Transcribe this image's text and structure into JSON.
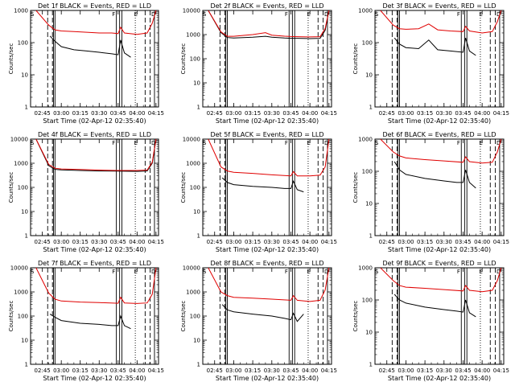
{
  "figure": {
    "title_prefix": "Det",
    "title_suffix": "BLACK = Events, RED = LLD",
    "xlabel": "Start Time (02-Apr-12 02:35:40)",
    "ylabel": "Counts/sec",
    "marker_labels": [
      "S",
      "F",
      "E",
      "D"
    ],
    "colors": {
      "events": "#000000",
      "lld": "#e00000",
      "axes": "#000000"
    }
  },
  "chart_data": [
    {
      "type": "line",
      "title": "Det 1f BLACK = Events, RED = LLD",
      "xlabel": "Start Time (02-Apr-12 02:35:40)",
      "ylabel": "Counts/sec",
      "x_ticks": [
        "02:45",
        "03:00",
        "03:15",
        "03:30",
        "03:45",
        "04:00",
        "04:15"
      ],
      "x_range": [
        "02:35:40",
        "04:17:00"
      ],
      "y_ticks": [
        "1",
        "10",
        "100",
        "1000"
      ],
      "y_range": [
        1,
        1000
      ],
      "y_scale": "log",
      "series": [
        {
          "name": "Events",
          "color": "#000000",
          "x": [
            "02:51",
            "02:55",
            "03:00",
            "03:10",
            "03:20",
            "03:30",
            "03:40",
            "03:45",
            "03:47",
            "03:50",
            "03:55"
          ],
          "y": [
            160,
            110,
            75,
            60,
            55,
            50,
            45,
            42,
            120,
            48,
            35
          ]
        },
        {
          "name": "LLD",
          "color": "#e00000",
          "x": [
            "02:40",
            "02:50",
            "02:55",
            "03:00",
            "03:10",
            "03:20",
            "03:30",
            "03:40",
            "03:45",
            "03:47",
            "03:50",
            "04:00",
            "04:08",
            "04:12",
            "04:15"
          ],
          "y": [
            1000,
            350,
            250,
            230,
            220,
            210,
            200,
            200,
            190,
            300,
            200,
            180,
            200,
            400,
            1000
          ]
        }
      ]
    },
    {
      "type": "line",
      "title": "Det 2f BLACK = Events, RED = LLD",
      "xlabel": "Start Time (02-Apr-12 02:35:40)",
      "ylabel": "Counts/sec",
      "x_ticks": [
        "02:45",
        "03:00",
        "03:15",
        "03:30",
        "03:45",
        "04:00",
        "04:15"
      ],
      "x_range": [
        "02:35:40",
        "04:17:00"
      ],
      "y_ticks": [
        "1",
        "10",
        "100",
        "1000",
        "10000"
      ],
      "y_range": [
        1,
        10000
      ],
      "y_scale": "log",
      "series": [
        {
          "name": "Events",
          "color": "#000000",
          "x": [
            "02:40",
            "02:50",
            "02:55",
            "03:00",
            "03:15",
            "03:25",
            "03:30",
            "03:40",
            "03:45",
            "03:50",
            "04:00",
            "04:08",
            "04:12",
            "04:15"
          ],
          "y": [
            10000,
            1200,
            750,
            720,
            780,
            850,
            780,
            720,
            700,
            700,
            680,
            700,
            1500,
            10000
          ]
        },
        {
          "name": "LLD",
          "color": "#e00000",
          "x": [
            "02:40",
            "02:50",
            "02:55",
            "03:00",
            "03:15",
            "03:25",
            "03:30",
            "03:40",
            "03:45",
            "03:50",
            "04:00",
            "04:08",
            "04:12",
            "04:15"
          ],
          "y": [
            10000,
            1300,
            850,
            850,
            1000,
            1200,
            950,
            860,
            830,
            820,
            800,
            820,
            1800,
            10000
          ]
        }
      ]
    },
    {
      "type": "line",
      "title": "Det 3f BLACK = Events, RED = LLD",
      "xlabel": "Start Time (02-Apr-12 02:35:40)",
      "ylabel": "Counts/sec",
      "x_ticks": [
        "02:45",
        "03:00",
        "03:15",
        "03:30",
        "03:45",
        "04:00",
        "04:15"
      ],
      "x_range": [
        "02:35:40",
        "04:17:00"
      ],
      "y_ticks": [
        "1",
        "10",
        "100",
        "1000"
      ],
      "y_range": [
        1,
        1000
      ],
      "y_scale": "log",
      "series": [
        {
          "name": "Events",
          "color": "#000000",
          "x": [
            "02:51",
            "02:55",
            "03:00",
            "03:10",
            "03:18",
            "03:25",
            "03:35",
            "03:45",
            "03:47",
            "03:50",
            "03:55"
          ],
          "y": [
            140,
            90,
            70,
            65,
            120,
            60,
            55,
            50,
            140,
            55,
            40
          ]
        },
        {
          "name": "LLD",
          "color": "#e00000",
          "x": [
            "02:40",
            "02:50",
            "02:55",
            "03:00",
            "03:10",
            "03:18",
            "03:25",
            "03:35",
            "03:45",
            "03:47",
            "03:50",
            "04:00",
            "04:08",
            "04:12",
            "04:15"
          ],
          "y": [
            1000,
            350,
            270,
            260,
            270,
            380,
            250,
            230,
            220,
            320,
            230,
            200,
            220,
            450,
            1000
          ]
        }
      ]
    },
    {
      "type": "line",
      "title": "Det 4f BLACK = Events, RED = LLD",
      "xlabel": "Start Time (02-Apr-12 02:35:40)",
      "ylabel": "Counts/sec",
      "x_ticks": [
        "02:45",
        "03:00",
        "03:15",
        "03:30",
        "03:45",
        "04:00",
        "04:15"
      ],
      "x_range": [
        "02:35:40",
        "04:17:00"
      ],
      "y_ticks": [
        "1",
        "10",
        "100",
        "1000",
        "10000"
      ],
      "y_range": [
        1,
        10000
      ],
      "y_scale": "log",
      "series": [
        {
          "name": "Events",
          "color": "#000000",
          "x": [
            "02:40",
            "02:50",
            "02:55",
            "03:00",
            "03:15",
            "03:30",
            "03:45",
            "04:00",
            "04:08",
            "04:12",
            "04:15"
          ],
          "y": [
            10000,
            800,
            560,
            530,
            500,
            480,
            470,
            460,
            480,
            1000,
            10000
          ]
        },
        {
          "name": "LLD",
          "color": "#e00000",
          "x": [
            "02:40",
            "02:50",
            "02:55",
            "03:00",
            "03:15",
            "03:30",
            "03:45",
            "04:00",
            "04:08",
            "04:12",
            "04:15"
          ],
          "y": [
            10000,
            900,
            620,
            580,
            550,
            520,
            500,
            500,
            520,
            1100,
            10000
          ]
        }
      ]
    },
    {
      "type": "line",
      "title": "Det 5f BLACK = Events, RED = LLD",
      "xlabel": "Start Time (02-Apr-12 02:35:40)",
      "ylabel": "Counts/sec",
      "x_ticks": [
        "02:45",
        "03:00",
        "03:15",
        "03:30",
        "03:45",
        "04:00",
        "04:15"
      ],
      "x_range": [
        "02:35:40",
        "04:17:00"
      ],
      "y_ticks": [
        "1",
        "10",
        "100",
        "1000",
        "10000"
      ],
      "y_range": [
        1,
        10000
      ],
      "y_scale": "log",
      "series": [
        {
          "name": "Events",
          "color": "#000000",
          "x": [
            "02:51",
            "02:55",
            "03:00",
            "03:15",
            "03:30",
            "03:40",
            "03:45",
            "03:47",
            "03:50",
            "03:55"
          ],
          "y": [
            250,
            160,
            130,
            110,
            100,
            90,
            90,
            180,
            80,
            65
          ]
        },
        {
          "name": "LLD",
          "color": "#e00000",
          "x": [
            "02:40",
            "02:50",
            "02:55",
            "03:00",
            "03:15",
            "03:30",
            "03:45",
            "03:47",
            "03:50",
            "04:00",
            "04:08",
            "04:12",
            "04:15"
          ],
          "y": [
            10000,
            700,
            480,
            420,
            380,
            330,
            300,
            450,
            300,
            300,
            320,
            700,
            10000
          ]
        }
      ]
    },
    {
      "type": "line",
      "title": "Det 6f BLACK = Events, RED = LLD",
      "xlabel": "Start Time (02-Apr-12 02:35:40)",
      "ylabel": "Counts/sec",
      "x_ticks": [
        "02:45",
        "03:00",
        "03:15",
        "03:30",
        "03:45",
        "04:00",
        "04:15"
      ],
      "x_range": [
        "02:35:40",
        "04:17:00"
      ],
      "y_ticks": [
        "1",
        "10",
        "100",
        "1000"
      ],
      "y_range": [
        1,
        1000
      ],
      "y_scale": "log",
      "series": [
        {
          "name": "Events",
          "color": "#000000",
          "x": [
            "02:51",
            "02:55",
            "03:00",
            "03:15",
            "03:30",
            "03:40",
            "03:45",
            "03:47",
            "03:50",
            "03:55"
          ],
          "y": [
            200,
            110,
            80,
            60,
            50,
            45,
            45,
            110,
            45,
            30
          ]
        },
        {
          "name": "LLD",
          "color": "#e00000",
          "x": [
            "02:40",
            "02:50",
            "02:55",
            "03:00",
            "03:15",
            "03:30",
            "03:45",
            "03:47",
            "03:50",
            "04:00",
            "04:08",
            "04:12",
            "04:15"
          ],
          "y": [
            1000,
            400,
            300,
            260,
            230,
            210,
            190,
            280,
            200,
            180,
            190,
            400,
            1000
          ]
        }
      ]
    },
    {
      "type": "line",
      "title": "Det 7f BLACK = Events, RED = LLD",
      "xlabel": "Start Time (02-Apr-12 02:35:40)",
      "ylabel": "Counts/sec",
      "x_ticks": [
        "02:45",
        "03:00",
        "03:15",
        "03:30",
        "03:45",
        "04:00",
        "04:15"
      ],
      "x_range": [
        "02:35:40",
        "04:17:00"
      ],
      "y_ticks": [
        "1",
        "10",
        "100",
        "1000",
        "10000"
      ],
      "y_range": [
        1,
        10000
      ],
      "y_scale": "log",
      "series": [
        {
          "name": "Events",
          "color": "#000000",
          "x": [
            "02:51",
            "02:55",
            "03:00",
            "03:15",
            "03:30",
            "03:40",
            "03:45",
            "03:47",
            "03:50",
            "03:55"
          ],
          "y": [
            120,
            90,
            65,
            50,
            45,
            40,
            40,
            100,
            40,
            30
          ]
        },
        {
          "name": "LLD",
          "color": "#e00000",
          "x": [
            "02:40",
            "02:50",
            "02:55",
            "03:00",
            "03:15",
            "03:30",
            "03:45",
            "03:47",
            "03:50",
            "04:00",
            "04:08",
            "04:12",
            "04:15"
          ],
          "y": [
            10000,
            900,
            500,
            420,
            380,
            360,
            340,
            600,
            350,
            330,
            350,
            800,
            10000
          ]
        }
      ]
    },
    {
      "type": "line",
      "title": "Det 8f BLACK = Events, RED = LLD",
      "xlabel": "Start Time (02-Apr-12 02:35:40)",
      "ylabel": "Counts/sec",
      "x_ticks": [
        "02:45",
        "03:00",
        "03:15",
        "03:30",
        "03:45",
        "04:00",
        "04:15"
      ],
      "x_range": [
        "02:35:40",
        "04:17:00"
      ],
      "y_ticks": [
        "1",
        "10",
        "100",
        "1000",
        "10000"
      ],
      "y_range": [
        1,
        10000
      ],
      "y_scale": "log",
      "series": [
        {
          "name": "Events",
          "color": "#000000",
          "x": [
            "02:51",
            "02:55",
            "03:00",
            "03:15",
            "03:30",
            "03:40",
            "03:45",
            "03:47",
            "03:50",
            "03:55"
          ],
          "y": [
            300,
            180,
            150,
            120,
            100,
            80,
            70,
            130,
            60,
            120
          ]
        },
        {
          "name": "LLD",
          "color": "#e00000",
          "x": [
            "02:40",
            "02:50",
            "02:55",
            "03:00",
            "03:15",
            "03:30",
            "03:45",
            "03:47",
            "03:50",
            "04:00",
            "04:08",
            "04:12",
            "04:15"
          ],
          "y": [
            10000,
            1000,
            700,
            600,
            550,
            500,
            450,
            700,
            450,
            400,
            450,
            1200,
            10000
          ]
        }
      ]
    },
    {
      "type": "line",
      "title": "Det 9f BLACK = Events, RED = LLD",
      "xlabel": "Start Time (02-Apr-12 02:35:40)",
      "ylabel": "Counts/sec",
      "x_ticks": [
        "02:45",
        "03:00",
        "03:15",
        "03:30",
        "03:45",
        "04:00",
        "04:15"
      ],
      "x_range": [
        "02:35:40",
        "04:17:00"
      ],
      "y_ticks": [
        "1",
        "10",
        "100",
        "1000"
      ],
      "y_range": [
        1,
        1000
      ],
      "y_scale": "log",
      "series": [
        {
          "name": "Events",
          "color": "#000000",
          "x": [
            "02:51",
            "02:55",
            "03:00",
            "03:15",
            "03:30",
            "03:40",
            "03:45",
            "03:47",
            "03:50",
            "03:55"
          ],
          "y": [
            150,
            100,
            80,
            60,
            50,
            45,
            42,
            100,
            40,
            30
          ]
        },
        {
          "name": "LLD",
          "color": "#e00000",
          "x": [
            "02:40",
            "02:50",
            "02:55",
            "03:00",
            "03:15",
            "03:30",
            "03:45",
            "03:47",
            "03:50",
            "04:00",
            "04:08",
            "04:12",
            "04:15"
          ],
          "y": [
            1000,
            400,
            280,
            250,
            230,
            210,
            190,
            280,
            200,
            180,
            200,
            400,
            1000
          ]
        }
      ]
    }
  ]
}
